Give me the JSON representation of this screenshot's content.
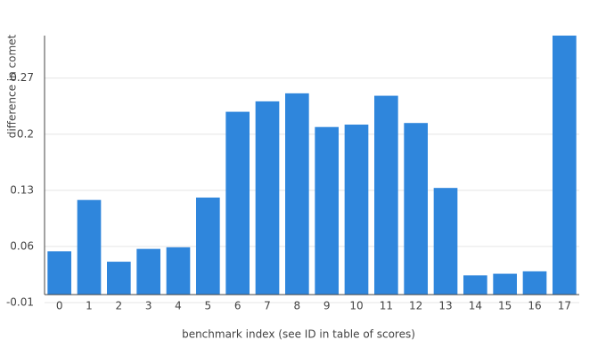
{
  "chart_data": {
    "type": "bar",
    "x_label": "benchmark index (see ID in table of scores)",
    "y_label": "difference in comet",
    "categories": [
      "0",
      "1",
      "2",
      "3",
      "4",
      "5",
      "6",
      "7",
      "8",
      "9",
      "10",
      "11",
      "12",
      "13",
      "14",
      "15",
      "16",
      "17"
    ],
    "values": [
      0.054,
      0.118,
      0.041,
      0.057,
      0.059,
      0.121,
      0.228,
      0.241,
      0.251,
      0.209,
      0.212,
      0.248,
      0.214,
      0.133,
      0.024,
      0.026,
      0.029,
      0.323
    ],
    "color": "#2f86dc",
    "ylim": [
      -0.01,
      0.323
    ],
    "yticks": [
      -0.01,
      0.06,
      0.13,
      0.2,
      0.27
    ],
    "grid": true
  }
}
